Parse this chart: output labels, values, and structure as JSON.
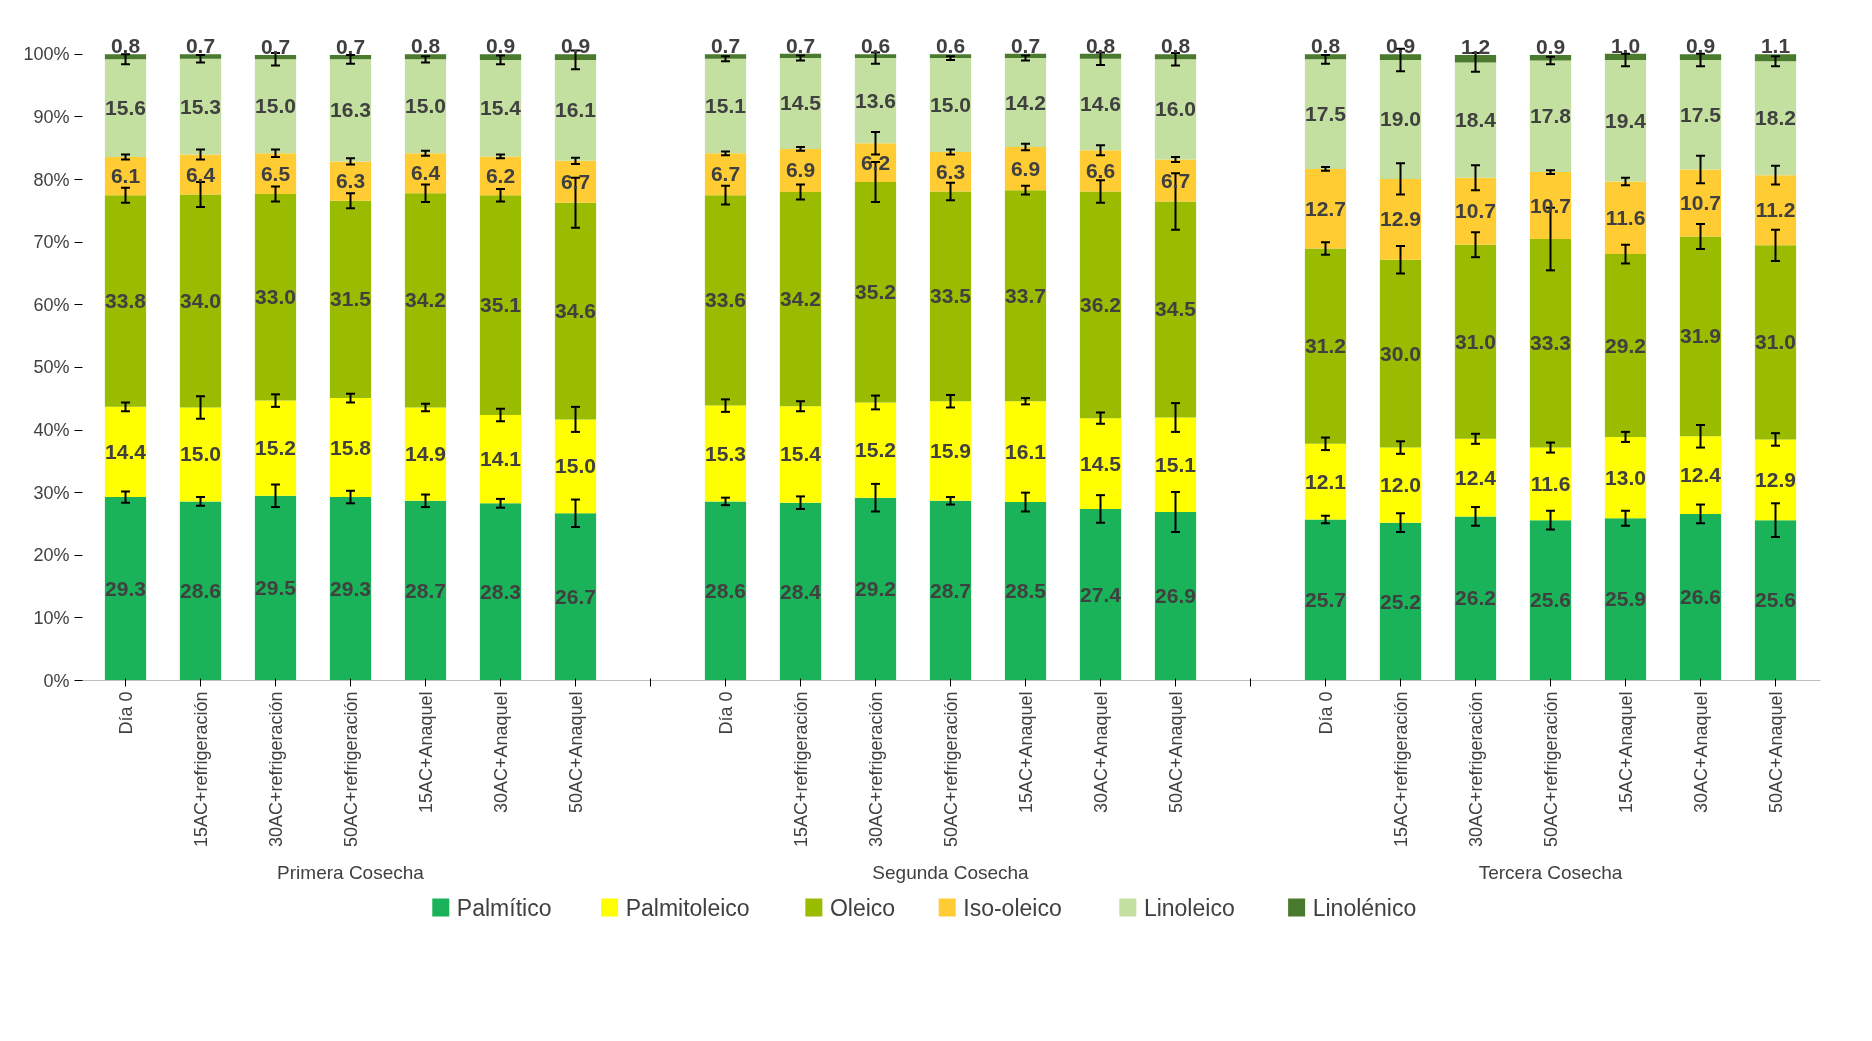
{
  "chart_data": {
    "type": "bar",
    "stacked": true,
    "data_labels": true,
    "grid": false,
    "legend": "bottom",
    "categories": [
      "Día 0",
      "15AC+refrigeración",
      "30AC+refrigeración",
      "50AC+refrigeración",
      "15AC+Anaquel",
      "30AC+Anaquel",
      "50AC+Anaquel",
      null,
      "Día 0",
      "15AC+refrigeración",
      "30AC+refrigeración",
      "50AC+refrigeración",
      "15AC+Anaquel",
      "30AC+Anaquel",
      "50AC+Anaquel",
      null,
      "Día 0",
      "15AC+refrigeración",
      "30AC+refrigeración",
      "50AC+refrigeración",
      "15AC+Anaquel",
      "30AC+Anaquel",
      "50AC+Anaquel"
    ],
    "ylim": [
      0,
      100
    ],
    "yticks": [
      {
        "value": 0,
        "label": "0%"
      },
      {
        "value": 10,
        "label": "10%"
      },
      {
        "value": 20,
        "label": "20%"
      },
      {
        "value": 30,
        "label": "30%"
      },
      {
        "value": 40,
        "label": "40%"
      },
      {
        "value": 50,
        "label": "50%"
      },
      {
        "value": 60,
        "label": "60%"
      },
      {
        "value": 70,
        "label": "70%"
      },
      {
        "value": 80,
        "label": "80%"
      },
      {
        "value": 90,
        "label": "90%"
      },
      {
        "value": 100,
        "label": "100%"
      }
    ],
    "annotations": [
      "Primera Cosecha",
      "Segunda Cosecha",
      "Tercera Cosecha"
    ],
    "series": [
      {
        "name": "Palmítico",
        "color": "#1ab35a",
        "values": [
          29.3,
          28.6,
          29.5,
          29.3,
          28.7,
          28.3,
          26.7,
          null,
          28.6,
          28.4,
          29.2,
          28.7,
          28.5,
          27.4,
          26.9,
          null,
          25.7,
          25.2,
          26.2,
          25.6,
          25.9,
          26.6,
          25.6
        ],
        "value_labels": [
          "29.3",
          "28.6",
          "29.5",
          "29.3",
          "28.7",
          "28.3",
          "26.7",
          null,
          "28.6",
          "28.4",
          "29.2",
          "28.7",
          "28.5",
          "27.4",
          "26.9",
          null,
          "25.7",
          "25.2",
          "26.2",
          "25.6",
          "25.9",
          "26.6",
          "25.6"
        ],
        "errors": [
          0.9,
          0.7,
          1.8,
          1.0,
          1.0,
          0.7,
          2.2,
          null,
          0.6,
          1.0,
          2.2,
          0.6,
          1.5,
          2.2,
          3.2,
          null,
          0.6,
          1.5,
          1.5,
          1.5,
          1.2,
          1.5,
          2.7
        ]
      },
      {
        "name": "Palmitoleico",
        "color": "#ffff00",
        "values": [
          14.4,
          15.0,
          15.2,
          15.8,
          14.9,
          14.1,
          15.0,
          null,
          15.3,
          15.4,
          15.2,
          15.9,
          16.1,
          14.5,
          15.1,
          null,
          12.1,
          12.0,
          12.4,
          11.6,
          13.0,
          12.4,
          12.9
        ],
        "value_labels": [
          "14.4",
          "15.0",
          "15.2",
          "15.8",
          "14.9",
          "14.1",
          "15.0",
          null,
          "15.3",
          "15.4",
          "15.2",
          "15.9",
          "16.1",
          "14.5",
          "15.1",
          null,
          "12.1",
          "12.0",
          "12.4",
          "11.6",
          "13.0",
          "12.4",
          "12.9"
        ],
        "errors": [
          0.7,
          1.8,
          1.0,
          0.7,
          0.6,
          1.0,
          2.0,
          null,
          1.0,
          0.8,
          1.1,
          1.0,
          0.5,
          0.9,
          2.3,
          null,
          1.0,
          1.0,
          0.8,
          0.8,
          0.8,
          1.8,
          1.0
        ]
      },
      {
        "name": "Oleico",
        "color": "#99bb00",
        "values": [
          33.8,
          34.0,
          33.0,
          31.5,
          34.2,
          35.1,
          34.6,
          null,
          33.6,
          34.2,
          35.2,
          33.5,
          33.7,
          36.2,
          34.5,
          null,
          31.2,
          30.0,
          31.0,
          33.3,
          29.2,
          31.9,
          31.0
        ],
        "value_labels": [
          "33.8",
          "34.0",
          "33.0",
          "31.5",
          "34.2",
          "35.1",
          "34.6",
          null,
          "33.6",
          "34.2",
          "35.2",
          "33.5",
          "33.7",
          "36.2",
          "34.5",
          null,
          "31.2",
          "30.0",
          "31.0",
          "33.3",
          "29.2",
          "31.9",
          "31.0"
        ],
        "errors": [
          1.2,
          2.0,
          1.2,
          1.2,
          1.4,
          1.0,
          4.0,
          null,
          1.5,
          1.2,
          3.2,
          1.4,
          0.7,
          1.8,
          4.5,
          null,
          1.0,
          2.2,
          2.0,
          5.0,
          1.5,
          2.0,
          2.5
        ]
      },
      {
        "name": "Iso-oleico",
        "color": "#ffcc33",
        "values": [
          6.1,
          6.4,
          6.5,
          6.3,
          6.4,
          6.2,
          6.7,
          null,
          6.7,
          6.9,
          6.2,
          6.3,
          6.9,
          6.6,
          6.7,
          null,
          12.7,
          12.9,
          10.7,
          10.7,
          11.6,
          10.7,
          11.2
        ],
        "value_labels": [
          "6.1",
          "6.4",
          "6.5",
          "6.3",
          "6.4",
          "6.2",
          "6.7",
          null,
          "6.7",
          "6.9",
          "6.2",
          "6.3",
          "6.9",
          "6.6",
          "6.7",
          null,
          "12.7",
          "12.9",
          "10.7",
          "10.7",
          "11.6",
          "10.7",
          "11.2"
        ],
        "errors": [
          0.4,
          0.8,
          0.6,
          0.5,
          0.4,
          0.3,
          0.5,
          null,
          0.3,
          0.3,
          1.8,
          0.4,
          0.5,
          0.8,
          0.4,
          null,
          0.3,
          2.5,
          2.0,
          0.3,
          0.6,
          2.2,
          1.5
        ]
      },
      {
        "name": "Linoleico",
        "color": "#c4e0a0",
        "values": [
          15.6,
          15.3,
          15.0,
          16.3,
          15.0,
          15.4,
          16.1,
          null,
          15.1,
          14.5,
          13.6,
          15.0,
          14.2,
          14.6,
          16.0,
          null,
          17.5,
          19.0,
          18.4,
          17.8,
          19.4,
          17.5,
          18.2
        ],
        "value_labels": [
          "15.6",
          "15.3",
          "15.0",
          "16.3",
          "15.0",
          "15.4",
          "16.1",
          null,
          "15.1",
          "14.5",
          "13.6",
          "15.0",
          "14.2",
          "14.6",
          "16.0",
          null,
          "17.5",
          "19.0",
          "18.4",
          "17.8",
          "19.4",
          "17.5",
          "18.2"
        ],
        "errors": [
          0.8,
          0.6,
          1.0,
          0.7,
          0.5,
          0.7,
          1.5,
          null,
          0.4,
          0.4,
          0.9,
          0.3,
          0.4,
          1.0,
          1.0,
          null,
          0.7,
          1.8,
          1.5,
          0.6,
          1.0,
          1.0,
          0.8
        ]
      },
      {
        "name": "Linolénico",
        "color": "#4a7a2e",
        "values": [
          0.8,
          0.7,
          0.7,
          0.7,
          0.8,
          0.9,
          0.9,
          null,
          0.7,
          0.7,
          0.6,
          0.6,
          0.7,
          0.8,
          0.8,
          null,
          0.8,
          0.9,
          1.2,
          0.9,
          1.0,
          0.9,
          1.1
        ],
        "value_labels": [
          "0.8",
          "0.7",
          "0.7",
          "0.7",
          "0.8",
          "0.9",
          "0.9",
          null,
          "0.7",
          "0.7",
          "0.6",
          "0.6",
          "0.7",
          "0.8",
          "0.8",
          null,
          "0.8",
          "0.9",
          "1.2",
          "0.9",
          "1.0",
          "0.9",
          "1.1"
        ]
      }
    ]
  }
}
